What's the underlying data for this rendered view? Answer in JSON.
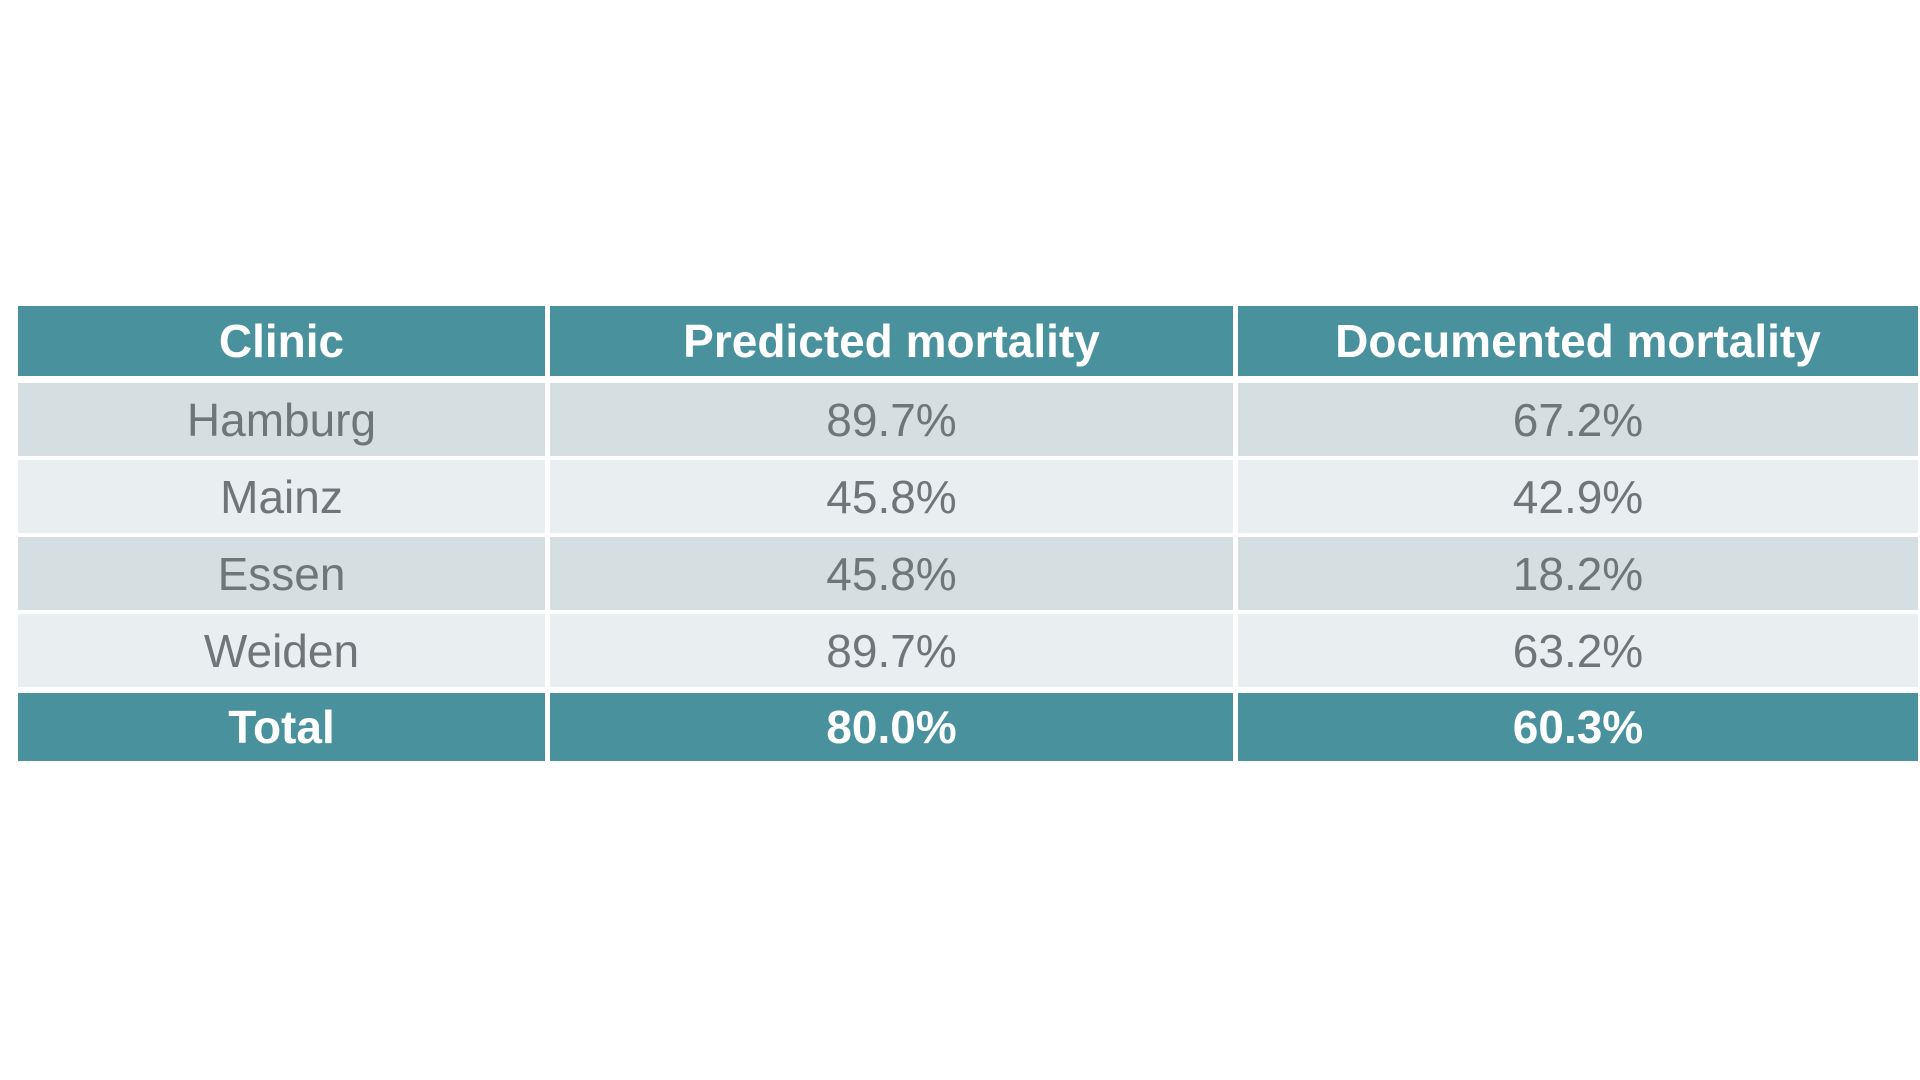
{
  "page": {
    "background_color": "#ffffff"
  },
  "colors": {
    "header_bg": "#4a919e",
    "header_text": "#ffffff",
    "row_dark_bg": "#d5dee1",
    "row_light_bg": "#e9eef0",
    "row_text": "#6e767a",
    "separator": "#ffffff"
  },
  "chart_data": {
    "type": "table",
    "columns": [
      "Clinic",
      "Predicted mortality",
      "Documented mortality"
    ],
    "rows": [
      [
        "Hamburg",
        "89.7%",
        "67.2%"
      ],
      [
        "Mainz",
        "45.8%",
        "42.9%"
      ],
      [
        "Essen",
        "45.8%",
        "18.2%"
      ],
      [
        "Weiden",
        "89.7%",
        "63.2%"
      ]
    ],
    "total_row": [
      "Total",
      "80.0%",
      "60.3%"
    ],
    "layout": {
      "striped": true,
      "header_position": "top",
      "total_position": "bottom"
    }
  }
}
